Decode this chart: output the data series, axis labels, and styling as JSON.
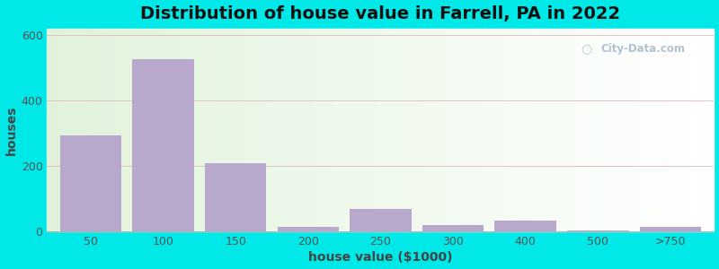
{
  "title": "Distribution of house value in Farrell, PA in 2022",
  "xlabel": "house value ($1000)",
  "ylabel": "houses",
  "bar_labels": [
    "50",
    "100",
    "150",
    "200",
    "250",
    "300",
    "400",
    "500",
    ">750"
  ],
  "bar_values": [
    295,
    525,
    210,
    15,
    70,
    20,
    35,
    5,
    15
  ],
  "bar_color": "#b8a8cc",
  "ylim": [
    0,
    620
  ],
  "yticks": [
    0,
    200,
    400,
    600
  ],
  "background_outer": "#00e8e8",
  "grid_color": "#ddbbbb",
  "title_fontsize": 14,
  "axis_label_fontsize": 10,
  "tick_fontsize": 9,
  "watermark": "City-Data.com",
  "watermark_color": "#aabbcc"
}
